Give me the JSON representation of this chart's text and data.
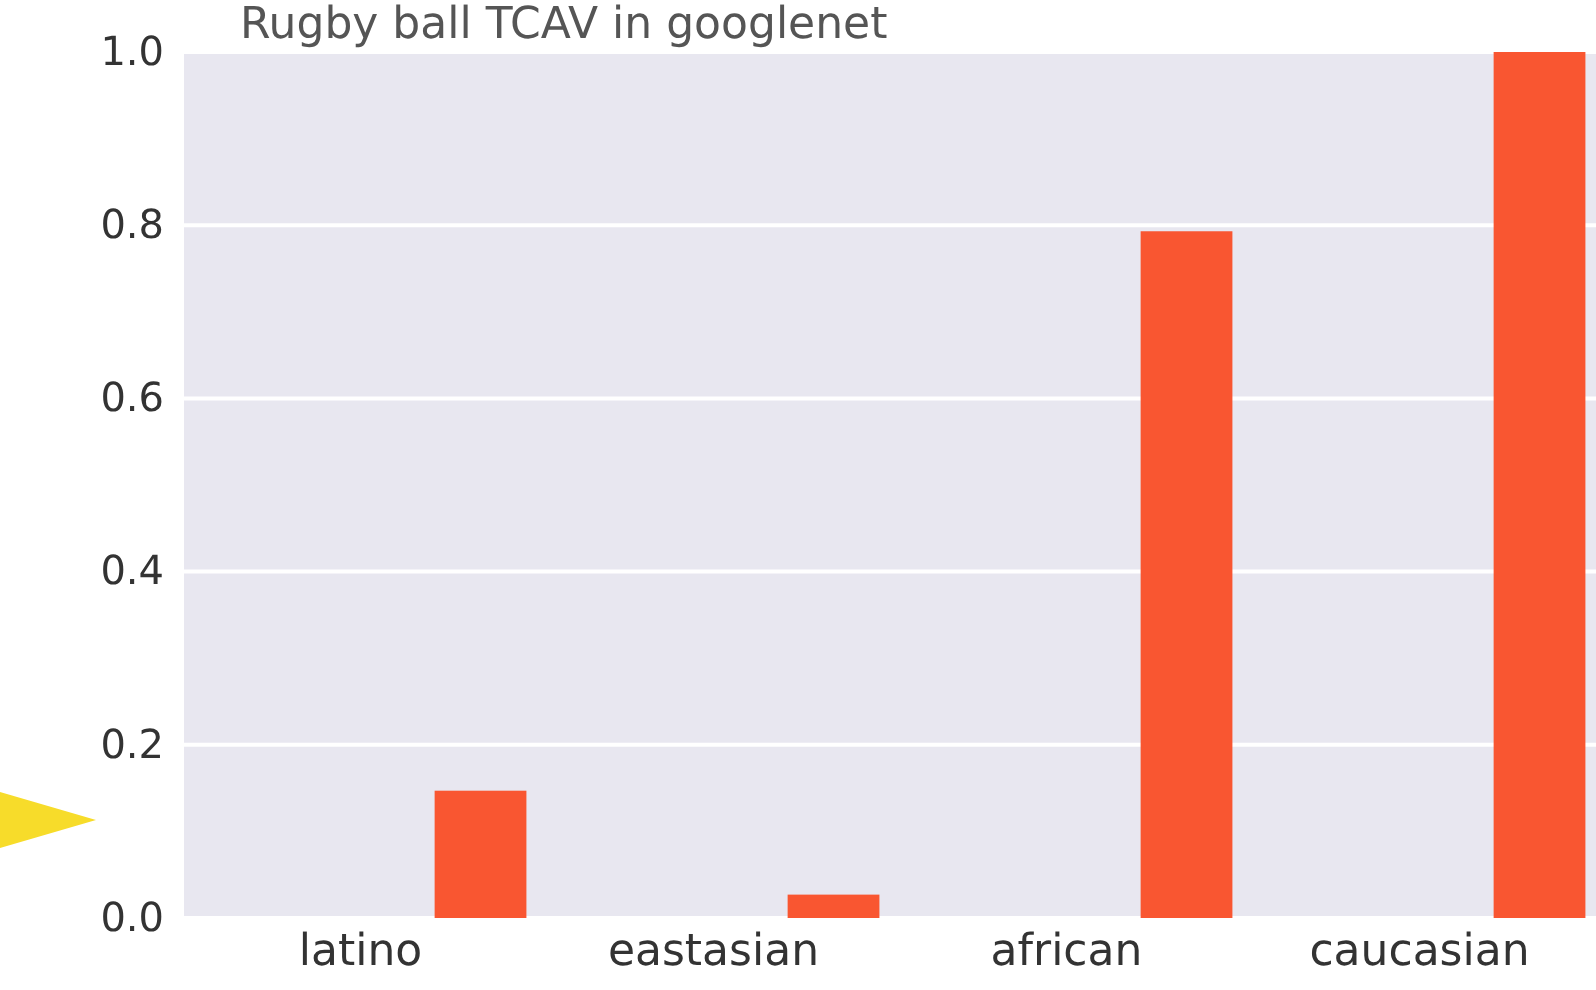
{
  "chart_data": {
    "type": "bar",
    "title": "Rugby ball TCAV in googlenet",
    "categories": [
      "latino",
      "eastasian",
      "african",
      "caucasian"
    ],
    "values": [
      0.147,
      0.027,
      0.793,
      1.0
    ],
    "color": "#f95631",
    "ylim": [
      0,
      1.0
    ],
    "yticks": [
      {
        "value": 0,
        "label": "0.0"
      },
      {
        "value": 0.2,
        "label": "0.2"
      },
      {
        "value": 0.4,
        "label": "0.4"
      },
      {
        "value": 0.6,
        "label": "0.6"
      },
      {
        "value": 0.8,
        "label": "0.8"
      },
      {
        "value": 1.0,
        "label": "1.0"
      }
    ],
    "grid": "y"
  }
}
